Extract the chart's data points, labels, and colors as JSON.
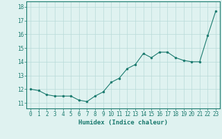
{
  "x": [
    0,
    1,
    2,
    3,
    4,
    5,
    6,
    7,
    8,
    9,
    10,
    11,
    12,
    13,
    14,
    15,
    16,
    17,
    18,
    19,
    20,
    21,
    22,
    23
  ],
  "y": [
    12.0,
    11.9,
    11.6,
    11.5,
    11.5,
    11.5,
    11.2,
    11.1,
    11.5,
    11.8,
    12.5,
    12.8,
    13.5,
    13.8,
    14.6,
    14.3,
    14.7,
    14.7,
    14.3,
    14.1,
    14.0,
    14.0,
    15.9,
    17.7
  ],
  "line_color": "#1a7a6e",
  "marker": "o",
  "marker_size": 2,
  "bg_color": "#dff2f0",
  "grid_color": "#b8dbd8",
  "xlabel": "Humidex (Indice chaleur)",
  "xlim": [
    -0.5,
    23.5
  ],
  "ylim": [
    10.6,
    18.4
  ],
  "xticks": [
    0,
    1,
    2,
    3,
    4,
    5,
    6,
    7,
    8,
    9,
    10,
    11,
    12,
    13,
    14,
    15,
    16,
    17,
    18,
    19,
    20,
    21,
    22,
    23
  ],
  "yticks": [
    11,
    12,
    13,
    14,
    15,
    16,
    17,
    18
  ],
  "tick_label_fontsize": 5.5,
  "xlabel_fontsize": 6.5
}
